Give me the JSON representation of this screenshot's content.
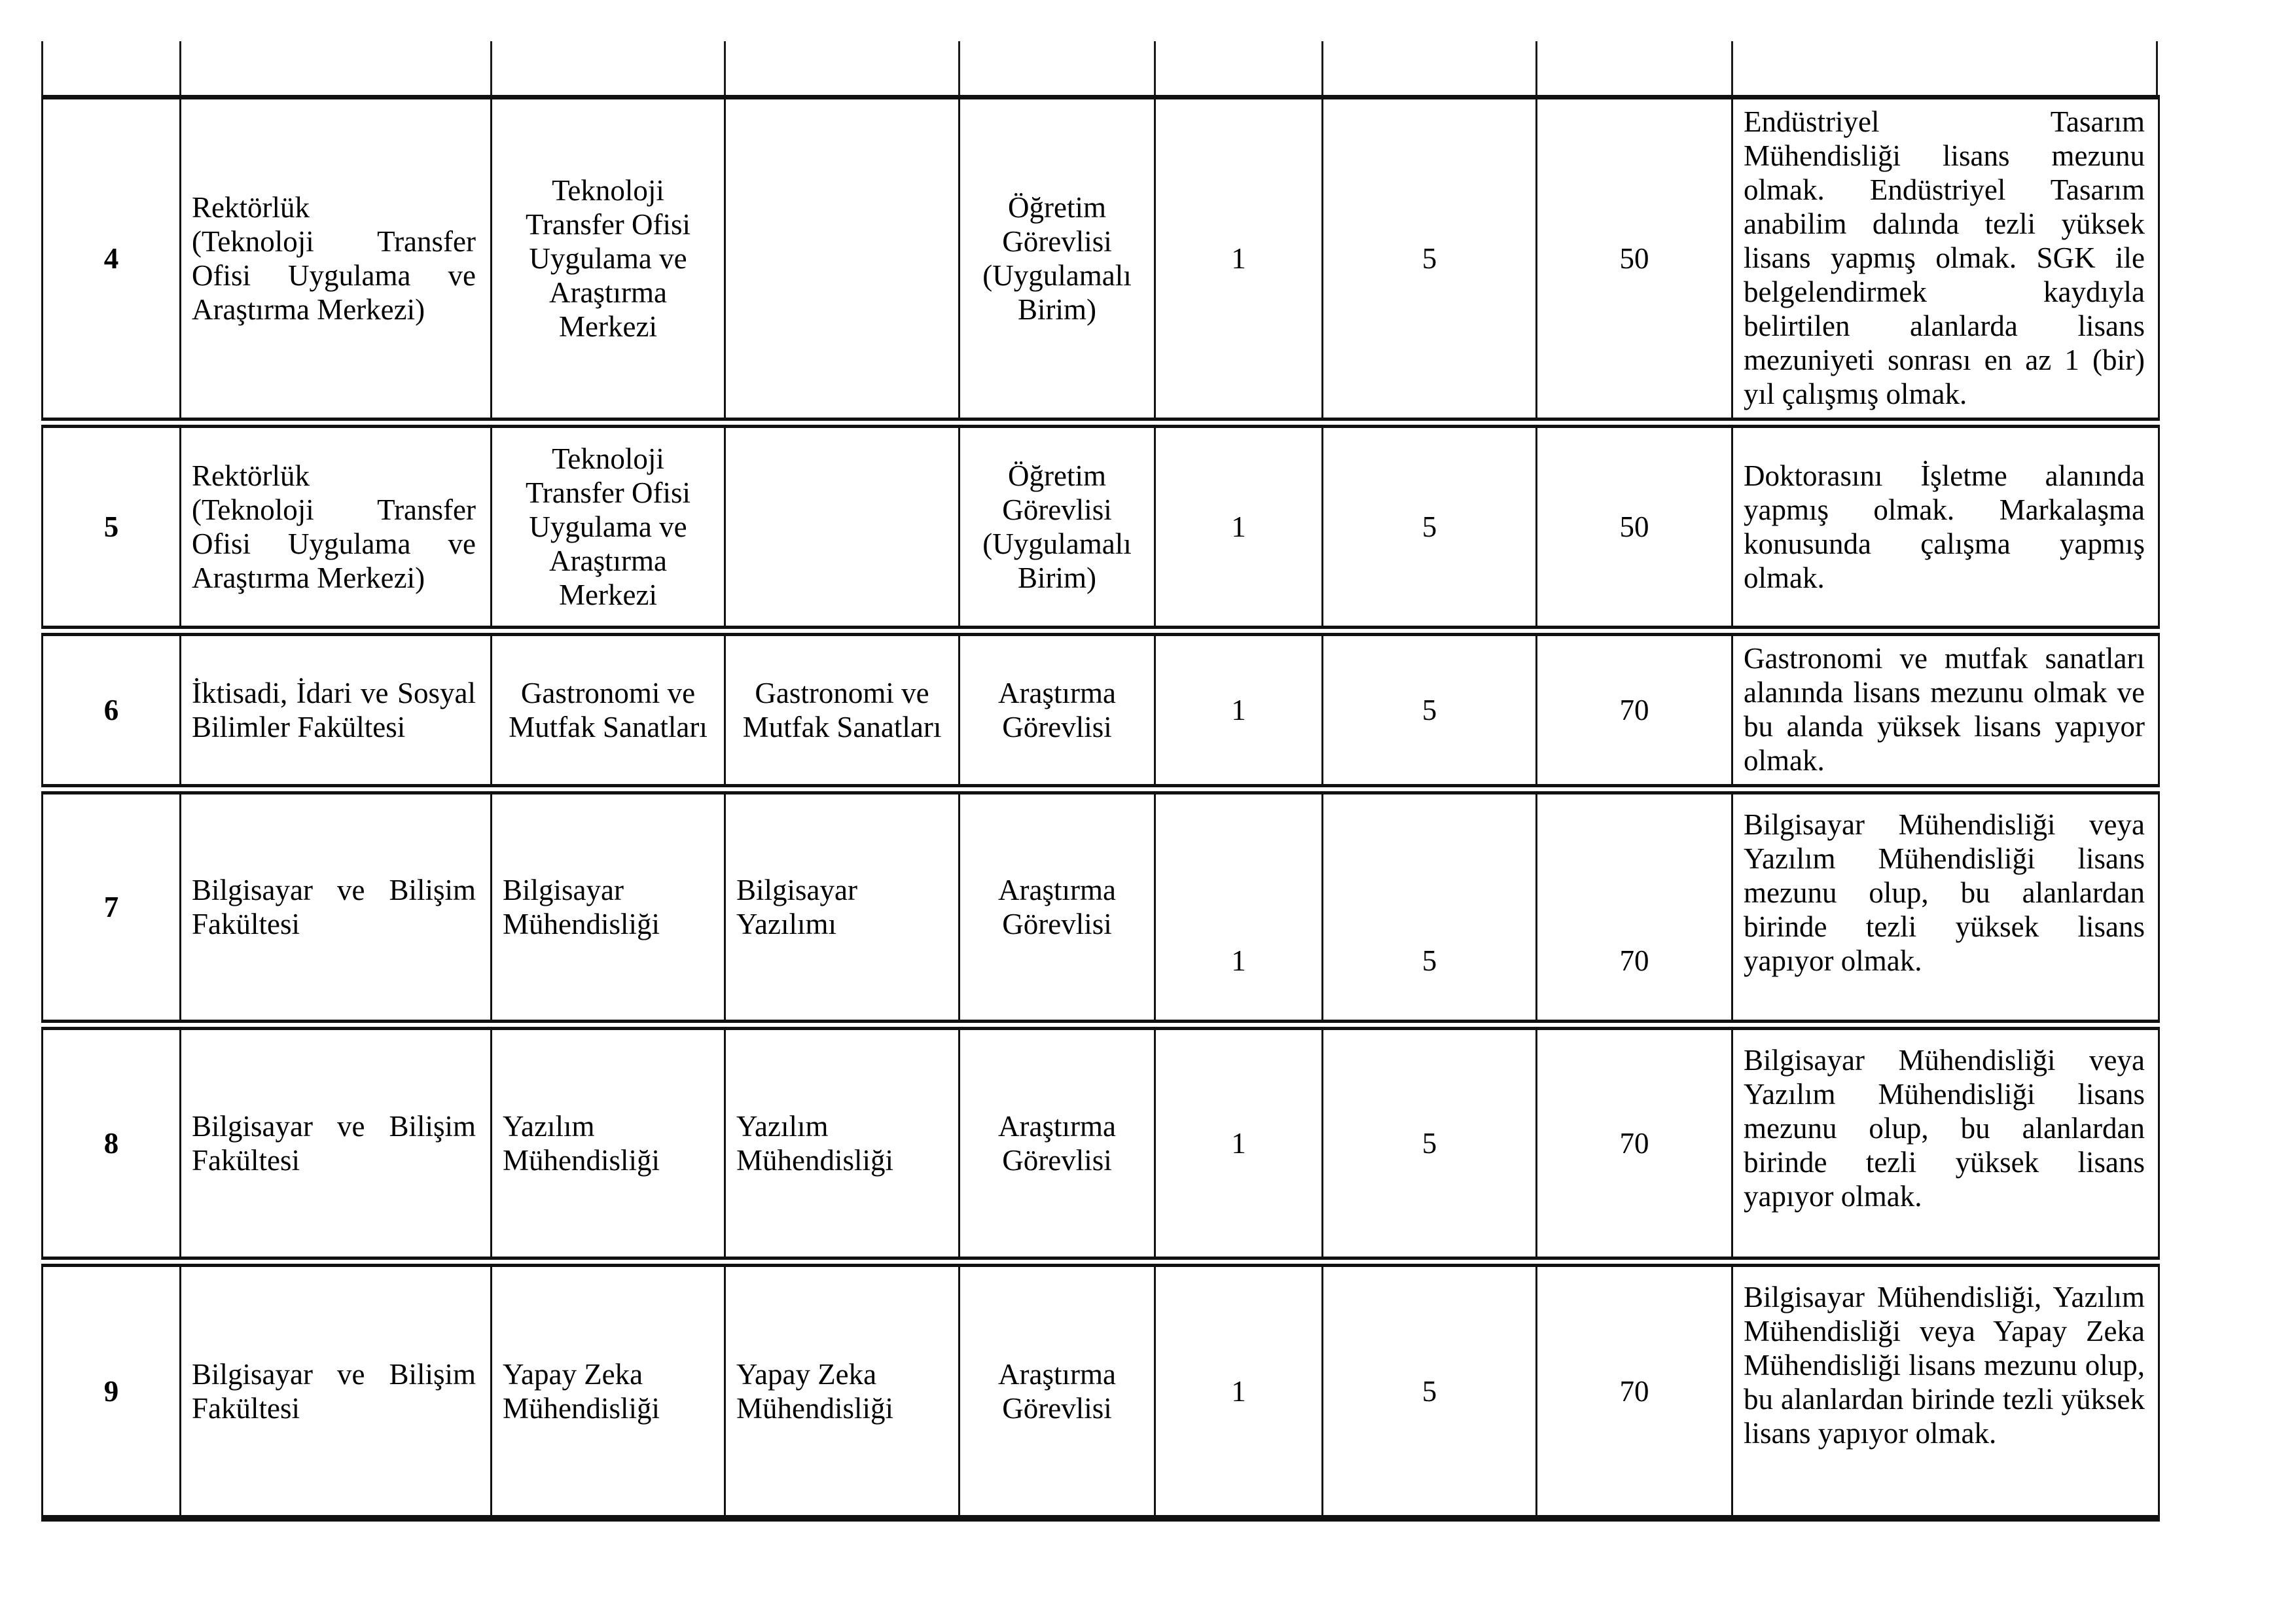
{
  "table": {
    "rows": [
      {
        "no": "4",
        "faculty": [
          "Rektörlük",
          "(Teknoloji Transfer Ofisi Uygulama ve Araştırma Merkezi)"
        ],
        "department": "Teknoloji Transfer Ofisi Uygulama ve Araştırma Merkezi",
        "program": "",
        "title": "Öğretim Görevlisi (Uygulamalı Birim)",
        "num1": "1",
        "num2": "5",
        "num3": "50",
        "requirements": "Endüstriyel Tasarım Mühendisliği lisans mezunu olmak. Endüstriyel Tasarım anabilim dalında tezli yüksek lisans yapmış olmak. SGK ile belgelendirmek kaydıyla belirtilen alanlarda lisans mezuniyeti sonrası en az 1 (bir) yıl çalışmış olmak."
      },
      {
        "no": "5",
        "faculty": [
          "Rektörlük",
          "(Teknoloji Transfer Ofisi Uygulama ve Araştırma Merkezi)"
        ],
        "department": "Teknoloji Transfer Ofisi Uygulama ve Araştırma Merkezi",
        "program": "",
        "title": "Öğretim Görevlisi (Uygulamalı Birim)",
        "num1": "1",
        "num2": "5",
        "num3": "50",
        "requirements": "Doktorasını İşletme alanında yapmış olmak. Markalaşma konusunda çalışma yapmış olmak."
      },
      {
        "no": "6",
        "faculty": [
          "İktisadi, İdari ve Sosyal Bilimler Fakültesi"
        ],
        "department": "Gastronomi ve Mutfak Sanatları",
        "program": "Gastronomi ve Mutfak Sanatları",
        "title": "Araştırma Görevlisi",
        "num1": "1",
        "num2": "5",
        "num3": "70",
        "requirements": "Gastronomi ve mutfak sanatları alanında lisans mezunu olmak ve bu alanda yüksek lisans yapıyor olmak."
      },
      {
        "no": "7",
        "faculty": [
          "Bilgisayar ve Bilişim Fakültesi"
        ],
        "department": "Bilgisayar Mühendisliği",
        "program": "Bilgisayar Yazılımı",
        "title": "Araştırma Görevlisi",
        "num1": "1",
        "num2": "5",
        "num3": "70",
        "requirements": "Bilgisayar Mühendisliği veya Yazılım Mühendisliği lisans mezunu olup, bu alanlardan birinde tezli yüksek lisans yapıyor olmak."
      },
      {
        "no": "8",
        "faculty": [
          "Bilgisayar ve Bilişim Fakültesi"
        ],
        "department": "Yazılım Mühendisliği",
        "program": "Yazılım Mühendisliği",
        "title": "Araştırma Görevlisi",
        "num1": "1",
        "num2": "5",
        "num3": "70",
        "requirements": "Bilgisayar Mühendisliği veya Yazılım Mühendisliği lisans mezunu olup, bu alanlardan birinde tezli yüksek lisans yapıyor olmak."
      },
      {
        "no": "9",
        "faculty": [
          "Bilgisayar ve Bilişim Fakültesi"
        ],
        "department": "Yapay Zeka Mühendisliği",
        "program": "Yapay Zeka Mühendisliği",
        "title": "Araştırma Görevlisi",
        "num1": "1",
        "num2": "5",
        "num3": "70",
        "requirements": "Bilgisayar Mühendisliği, Yazılım Mühendisliği veya Yapay Zeka Mühendisliği lisans mezunu olup, bu alanlardan birinde tezli yüksek lisans yapıyor olmak."
      }
    ]
  }
}
